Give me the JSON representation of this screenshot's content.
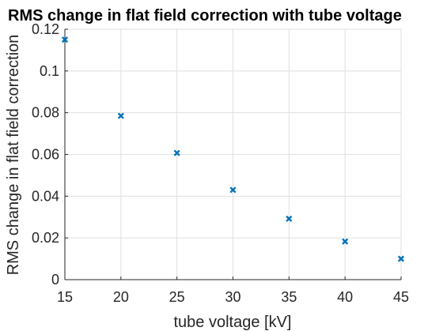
{
  "chart_data": {
    "type": "scatter",
    "title": "RMS change in flat field correction with tube voltage",
    "xlabel": "tube voltage [kV]",
    "ylabel": "RMS change in flat field correction",
    "xlim": [
      15,
      45
    ],
    "ylim": [
      0,
      0.12
    ],
    "xticks": [
      15,
      20,
      25,
      30,
      35,
      40,
      45
    ],
    "yticks": [
      0,
      0.02,
      0.04,
      0.06,
      0.08,
      0.1,
      0.12
    ],
    "xtick_labels": [
      "15",
      "20",
      "25",
      "30",
      "35",
      "40",
      "45"
    ],
    "ytick_labels": [
      "0",
      "0.02",
      "0.04",
      "0.06",
      "0.08",
      "0.1",
      "0.12"
    ],
    "grid": true,
    "marker": "x",
    "color": "#0072bd",
    "x": [
      15,
      20,
      25,
      30,
      35,
      40,
      45
    ],
    "y": [
      0.115,
      0.0785,
      0.0607,
      0.043,
      0.0292,
      0.0183,
      0.01
    ]
  }
}
